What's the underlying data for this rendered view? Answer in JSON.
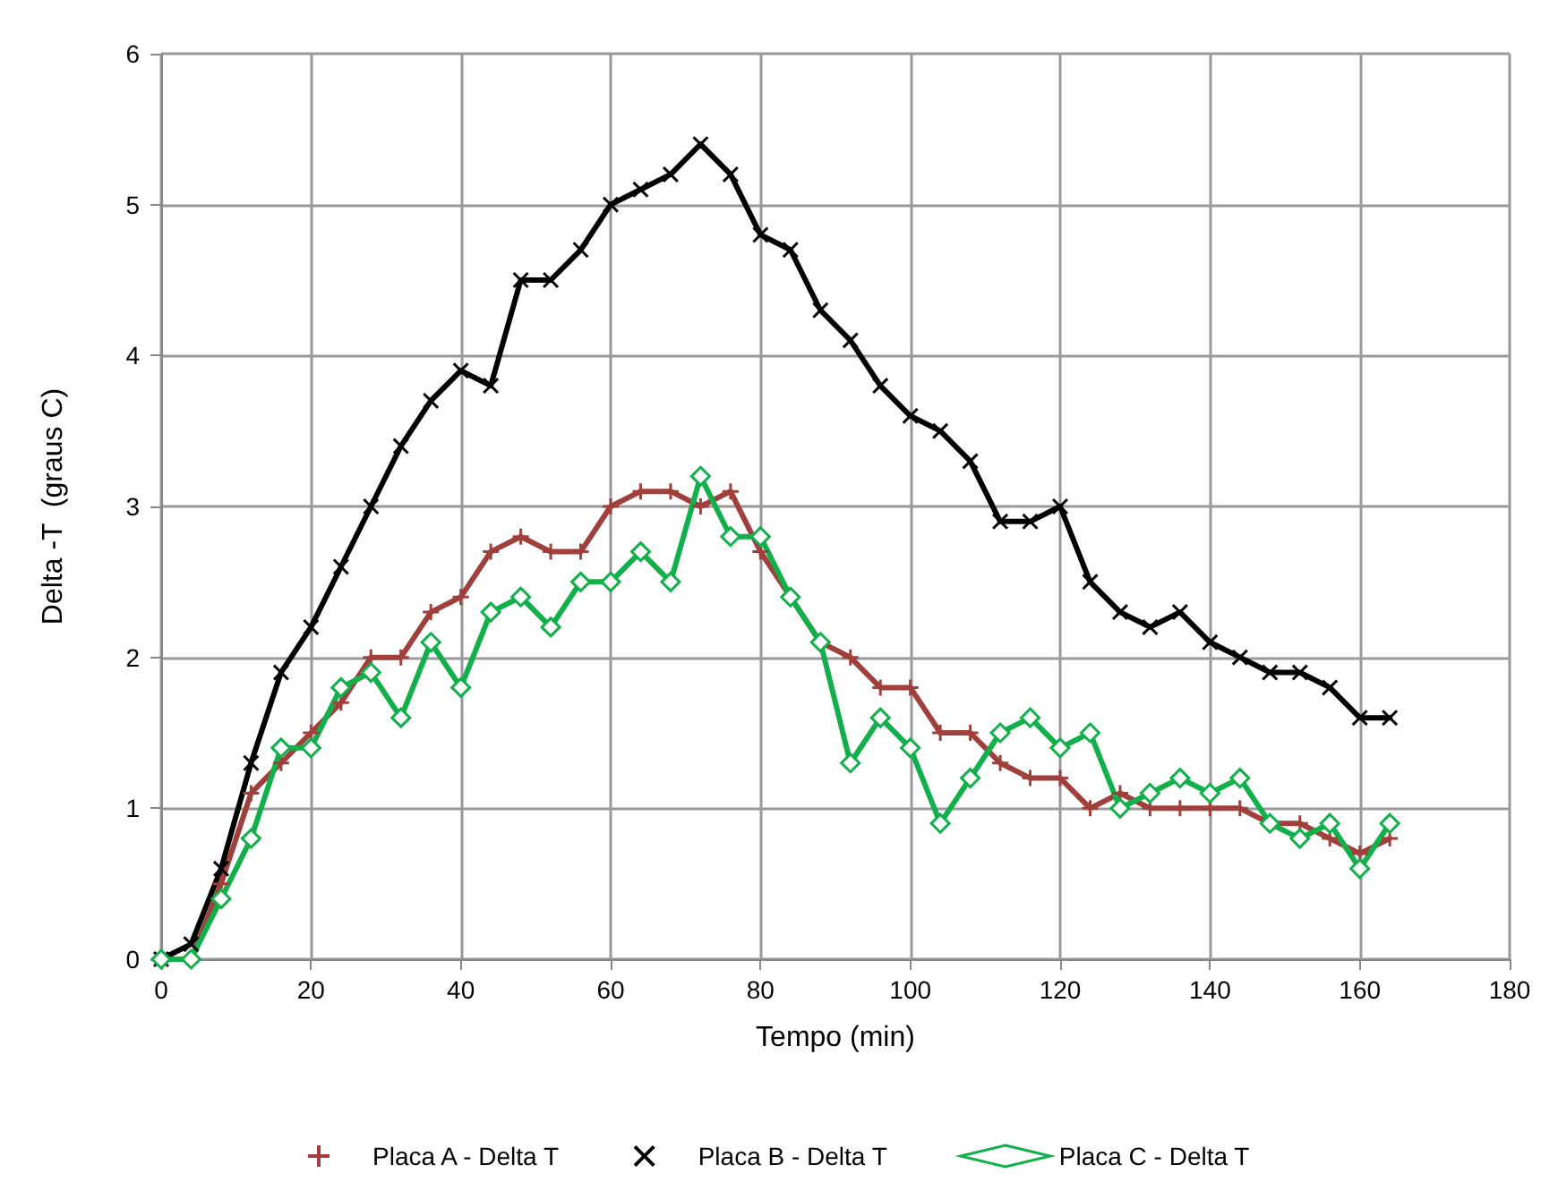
{
  "chart_data": {
    "type": "line",
    "xlabel": "Tempo (min)",
    "ylabel": "Delta -T  (graus C)",
    "x": [
      0,
      4,
      8,
      12,
      16,
      20,
      24,
      28,
      32,
      36,
      40,
      44,
      48,
      52,
      56,
      60,
      64,
      68,
      72,
      76,
      80,
      84,
      88,
      92,
      96,
      100,
      104,
      108,
      112,
      116,
      120,
      124,
      128,
      132,
      136,
      140,
      144,
      148,
      152,
      156,
      160,
      164
    ],
    "series": [
      {
        "name": "Placa A - Delta T",
        "color": "#a0403c",
        "marker": "plus",
        "values": [
          0,
          0,
          0.5,
          1.1,
          1.3,
          1.5,
          1.7,
          2.0,
          2.0,
          2.3,
          2.4,
          2.7,
          2.8,
          2.7,
          2.7,
          3.0,
          3.1,
          3.1,
          3.0,
          3.1,
          2.7,
          2.4,
          2.1,
          2.0,
          1.8,
          1.8,
          1.5,
          1.5,
          1.3,
          1.2,
          1.2,
          1.0,
          1.1,
          1.0,
          1.0,
          1.0,
          1.0,
          0.9,
          0.9,
          0.8,
          0.7,
          0.8
        ]
      },
      {
        "name": "Placa B - Delta T",
        "color": "#000000",
        "marker": "cross",
        "values": [
          0,
          0.1,
          0.6,
          1.3,
          1.9,
          2.2,
          2.6,
          3.0,
          3.4,
          3.7,
          3.9,
          3.8,
          4.5,
          4.5,
          4.7,
          5.0,
          5.1,
          5.2,
          5.4,
          5.2,
          4.8,
          4.7,
          4.3,
          4.1,
          3.8,
          3.6,
          3.5,
          3.3,
          2.9,
          2.9,
          3.0,
          2.5,
          2.3,
          2.2,
          2.3,
          2.1,
          2.0,
          1.9,
          1.9,
          1.8,
          1.6,
          1.6
        ]
      },
      {
        "name": "Placa C - Delta T",
        "color": "#12b04a",
        "marker": "diamond",
        "values": [
          0,
          0,
          0.4,
          0.8,
          1.4,
          1.4,
          1.8,
          1.9,
          1.6,
          2.1,
          1.8,
          2.3,
          2.4,
          2.2,
          2.5,
          2.5,
          2.7,
          2.5,
          3.2,
          2.8,
          2.8,
          2.4,
          2.1,
          1.3,
          1.6,
          1.4,
          0.9,
          1.2,
          1.5,
          1.6,
          1.4,
          1.5,
          1.0,
          1.1,
          1.2,
          1.1,
          1.2,
          0.9,
          0.8,
          0.9,
          0.6,
          0.9
        ]
      }
    ],
    "xlim": [
      0,
      180
    ],
    "xticks": [
      0,
      20,
      40,
      60,
      80,
      100,
      120,
      140,
      160,
      180
    ],
    "ylim": [
      0,
      6
    ],
    "yticks": [
      0,
      1,
      2,
      3,
      4,
      5,
      6
    ],
    "grid": true,
    "legend": "bottom",
    "line_style": "solid"
  }
}
